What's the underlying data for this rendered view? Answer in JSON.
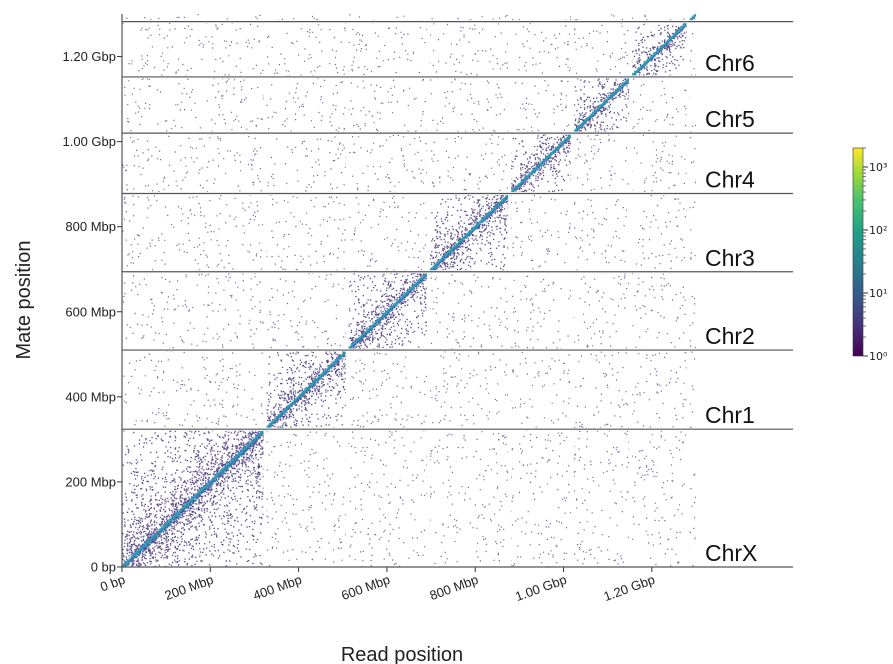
{
  "chart_data": {
    "type": "heatmap",
    "title": "",
    "xlabel": "Read position",
    "ylabel": "Mate position",
    "xlim": [
      0,
      1300
    ],
    "ylim": [
      0,
      1300
    ],
    "units": "Mbp",
    "x_ticks": [
      {
        "value": 0,
        "label": "0 bp"
      },
      {
        "value": 200,
        "label": "200 Mbp"
      },
      {
        "value": 400,
        "label": "400 Mbp"
      },
      {
        "value": 600,
        "label": "600 Mbp"
      },
      {
        "value": 800,
        "label": "800 Mbp"
      },
      {
        "value": 1000,
        "label": "1.00 Gbp"
      },
      {
        "value": 1200,
        "label": "1.20 Gbp"
      }
    ],
    "y_ticks": [
      {
        "value": 0,
        "label": "0 bp"
      },
      {
        "value": 200,
        "label": "200 Mbp"
      },
      {
        "value": 400,
        "label": "400 Mbp"
      },
      {
        "value": 600,
        "label": "600 Mbp"
      },
      {
        "value": 800,
        "label": "800 Mbp"
      },
      {
        "value": 1000,
        "label": "1.00 Gbp"
      },
      {
        "value": 1200,
        "label": "1.20 Gbp"
      }
    ],
    "chromosomes": [
      {
        "name": "ChrX",
        "start": 0,
        "end": 324
      },
      {
        "name": "Chr1",
        "start": 324,
        "end": 510
      },
      {
        "name": "Chr2",
        "start": 510,
        "end": 694
      },
      {
        "name": "Chr3",
        "start": 694,
        "end": 878
      },
      {
        "name": "Chr4",
        "start": 878,
        "end": 1020
      },
      {
        "name": "Chr5",
        "start": 1020,
        "end": 1152
      },
      {
        "name": "Chr6",
        "start": 1152,
        "end": 1282
      },
      {
        "name": "",
        "start": 1282,
        "end": 1300
      }
    ],
    "colorbar": {
      "scale": "log",
      "colormap": "viridis",
      "min": 1,
      "max": 2000,
      "ticks": [
        {
          "value": 1,
          "label": "10⁰"
        },
        {
          "value": 10,
          "label": "10¹"
        },
        {
          "value": 100,
          "label": "10²"
        },
        {
          "value": 1000,
          "label": "10³"
        }
      ]
    },
    "colors": {
      "background_dots": "#3b2a6e",
      "diagonal": "#2c7fb8",
      "boundary_lines": "#555555"
    },
    "grid": false
  }
}
